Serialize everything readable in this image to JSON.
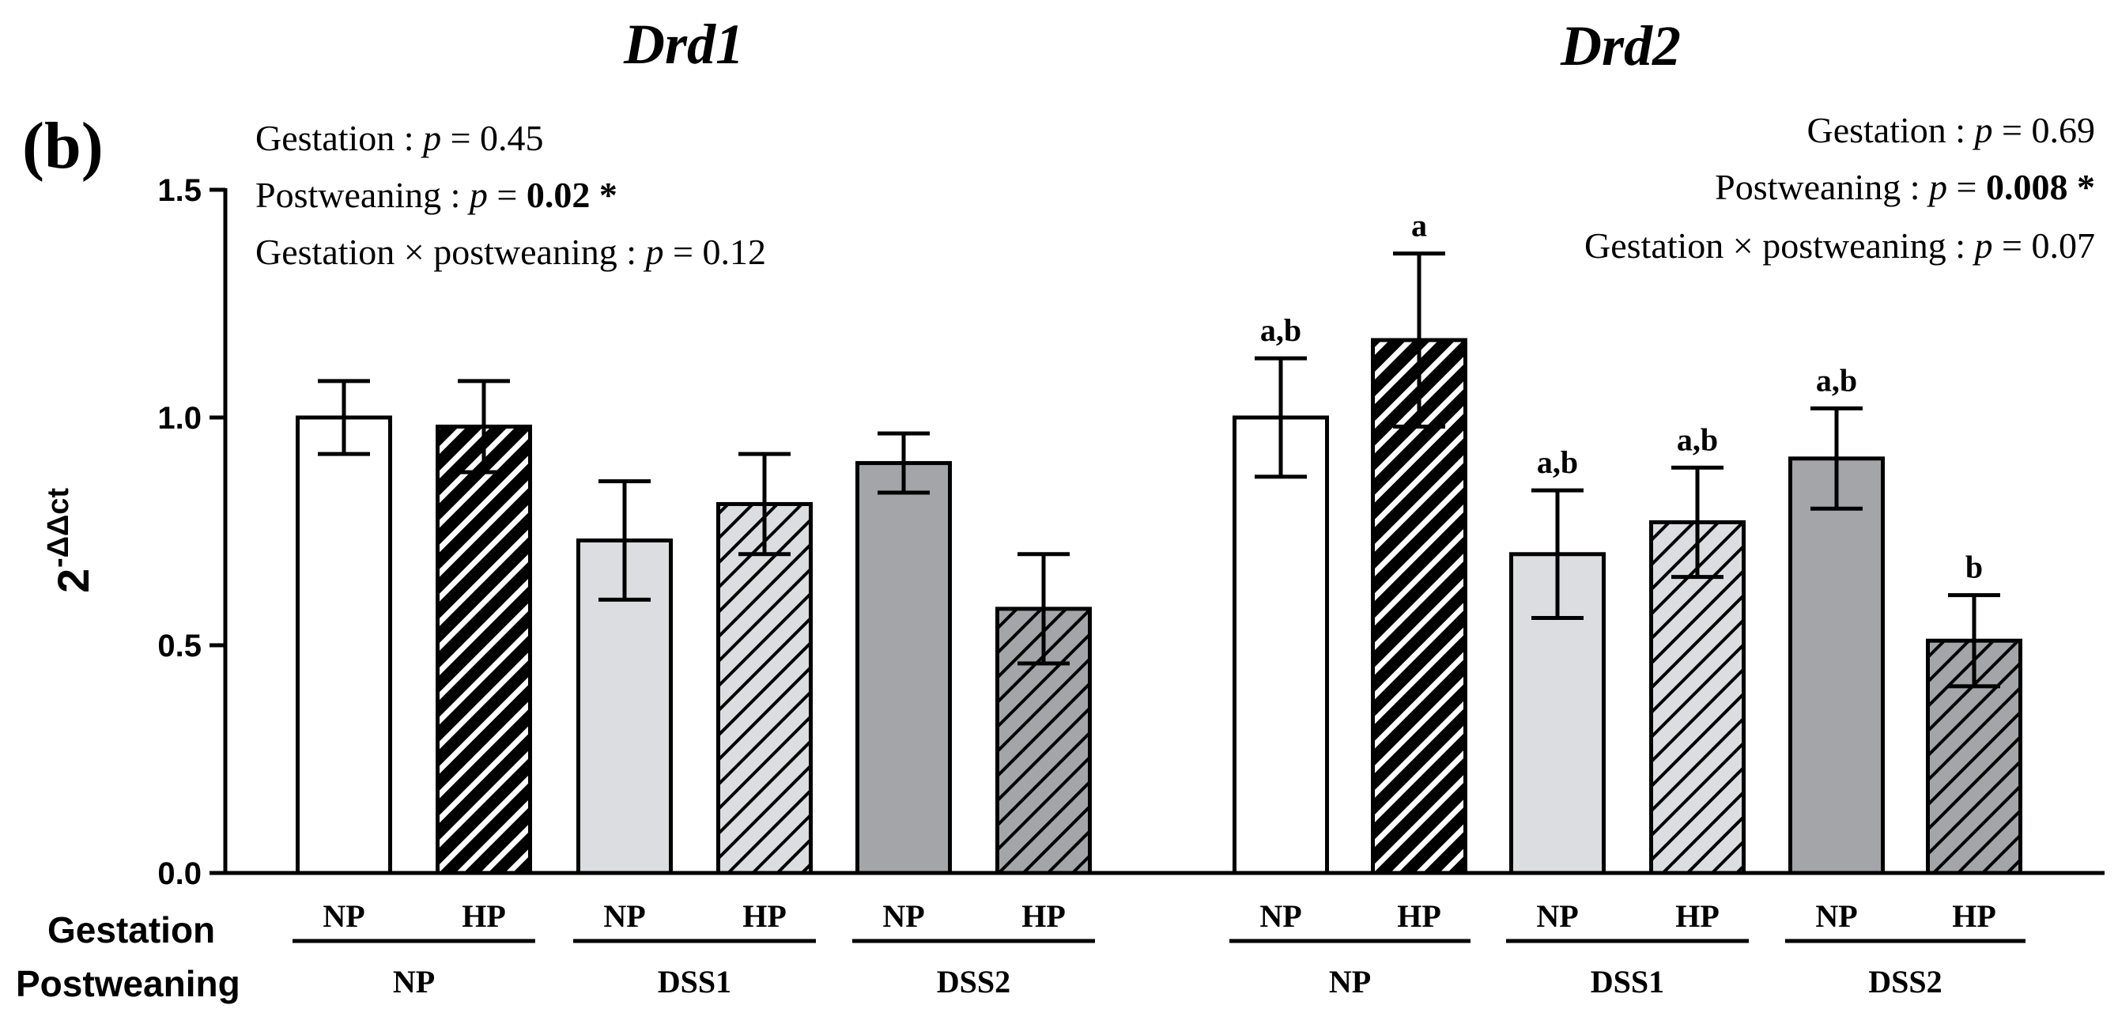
{
  "panel_label": "(b)",
  "chart_data": [
    {
      "type": "bar",
      "title": "Drd1",
      "ylabel": "2-ΔΔct",
      "ylim": [
        0,
        1.5
      ],
      "yticks": [
        "0.0",
        "0.5",
        "1.0",
        "1.5"
      ],
      "categories": [
        "NP/NP",
        "HP/NP",
        "NP/DSS1",
        "HP/DSS1",
        "NP/DSS2",
        "HP/DSS2"
      ],
      "values": [
        1.0,
        0.98,
        0.73,
        0.81,
        0.9,
        0.58
      ],
      "errors": [
        0.08,
        0.1,
        0.13,
        0.11,
        0.065,
        0.12
      ],
      "significance_letters": [
        "",
        "",
        "",
        "",
        "",
        ""
      ],
      "stats": {
        "gestation": {
          "label": "Gestation : ",
          "p_label": "p",
          "eq": " = ",
          "value": "0.45",
          "star": ""
        },
        "postweaning": {
          "label": "Postweaning : ",
          "p_label": "p",
          "eq": " = ",
          "value": "0.02",
          "star": " *"
        },
        "interaction": {
          "label": "Gestation × postweaning : ",
          "p_label": "p",
          "eq": " = ",
          "value": "0.12",
          "star": ""
        }
      }
    },
    {
      "type": "bar",
      "title": "Drd2",
      "ylabel": "2-ΔΔct",
      "ylim": [
        0,
        1.5
      ],
      "categories": [
        "NP/NP",
        "HP/NP",
        "NP/DSS1",
        "HP/DSS1",
        "NP/DSS2",
        "HP/DSS2"
      ],
      "values": [
        1.0,
        1.17,
        0.7,
        0.77,
        0.91,
        0.51
      ],
      "errors": [
        0.13,
        0.19,
        0.14,
        0.12,
        0.11,
        0.1
      ],
      "significance_letters": [
        "a,b",
        "a",
        "a,b",
        "a,b",
        "a,b",
        "b"
      ],
      "stats": {
        "gestation": {
          "label": "Gestation : ",
          "p_label": "p",
          "eq": " = ",
          "value": "0.69",
          "star": ""
        },
        "postweaning": {
          "label": "Postweaning : ",
          "p_label": "p",
          "eq": " = ",
          "value": "0.008",
          "star": " *"
        },
        "interaction": {
          "label": "Gestation × postweaning : ",
          "p_label": "p",
          "eq": " = ",
          "value": "0.07",
          "star": ""
        }
      }
    }
  ],
  "x_axis": {
    "row1_label": "Gestation",
    "row2_label": "Postweaning",
    "gestation_labels": [
      "NP",
      "HP"
    ],
    "postweaning_groups": [
      "NP",
      "DSS1",
      "DSS2"
    ]
  },
  "colors": {
    "np_np": "#ffffff",
    "hp_np": "#000000",
    "dss1": "#dcdde0",
    "dss2": "#a4a5a8",
    "outline": "#000000"
  }
}
